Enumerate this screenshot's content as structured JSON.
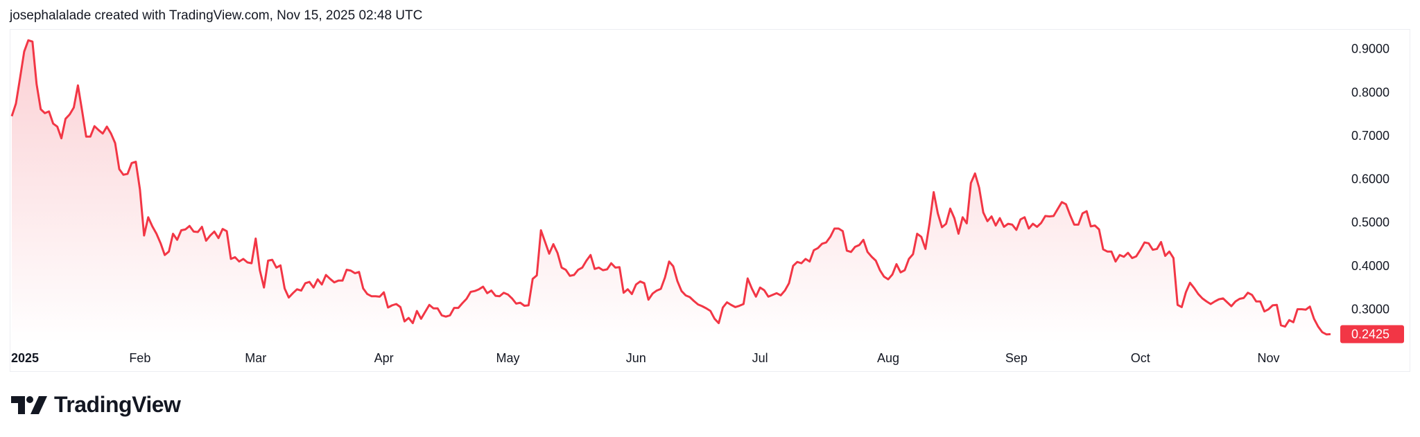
{
  "header": {
    "caption": "josephalalade created with TradingView.com, Nov 15, 2025 02:48 UTC"
  },
  "brand": {
    "name": "TradingView",
    "icon": "tradingview-logo-icon"
  },
  "colors": {
    "line": "#f23645",
    "area_top": "#fbd0d4",
    "area_bottom": "#ffffff",
    "label_bg": "#f23645",
    "label_text": "#ffffff",
    "axis_text": "#131722"
  },
  "chart_data": {
    "type": "area",
    "series": [
      {
        "values": [
          0.745,
          0.774,
          0.833,
          0.894,
          0.92,
          0.917,
          0.819,
          0.761,
          0.752,
          0.756,
          0.728,
          0.721,
          0.694,
          0.739,
          0.749,
          0.765,
          0.816,
          0.758,
          0.698,
          0.698,
          0.722,
          0.713,
          0.705,
          0.721,
          0.705,
          0.683,
          0.623,
          0.61,
          0.612,
          0.637,
          0.64,
          0.576,
          0.47,
          0.512,
          0.491,
          0.474,
          0.452,
          0.425,
          0.433,
          0.474,
          0.46,
          0.482,
          0.484,
          0.492,
          0.479,
          0.478,
          0.49,
          0.458,
          0.47,
          0.479,
          0.464,
          0.485,
          0.48,
          0.416,
          0.42,
          0.41,
          0.416,
          0.408,
          0.406,
          0.463,
          0.39,
          0.35,
          0.412,
          0.414,
          0.396,
          0.401,
          0.348,
          0.327,
          0.337,
          0.346,
          0.343,
          0.36,
          0.363,
          0.35,
          0.369,
          0.357,
          0.379,
          0.37,
          0.362,
          0.366,
          0.366,
          0.391,
          0.389,
          0.383,
          0.386,
          0.348,
          0.335,
          0.33,
          0.33,
          0.329,
          0.339,
          0.304,
          0.309,
          0.312,
          0.305,
          0.272,
          0.28,
          0.268,
          0.296,
          0.278,
          0.294,
          0.31,
          0.302,
          0.302,
          0.286,
          0.283,
          0.286,
          0.303,
          0.303,
          0.314,
          0.324,
          0.34,
          0.342,
          0.346,
          0.352,
          0.337,
          0.343,
          0.331,
          0.33,
          0.338,
          0.334,
          0.325,
          0.313,
          0.315,
          0.308,
          0.309,
          0.37,
          0.378,
          0.482,
          0.455,
          0.428,
          0.45,
          0.43,
          0.396,
          0.391,
          0.377,
          0.379,
          0.391,
          0.396,
          0.412,
          0.425,
          0.393,
          0.396,
          0.39,
          0.392,
          0.406,
          0.396,
          0.397,
          0.338,
          0.346,
          0.335,
          0.357,
          0.364,
          0.36,
          0.322,
          0.336,
          0.343,
          0.347,
          0.373,
          0.41,
          0.399,
          0.365,
          0.342,
          0.332,
          0.328,
          0.319,
          0.311,
          0.307,
          0.302,
          0.296,
          0.278,
          0.268,
          0.304,
          0.316,
          0.31,
          0.305,
          0.308,
          0.312,
          0.371,
          0.348,
          0.329,
          0.35,
          0.344,
          0.329,
          0.333,
          0.337,
          0.332,
          0.343,
          0.36,
          0.4,
          0.409,
          0.406,
          0.416,
          0.41,
          0.436,
          0.441,
          0.451,
          0.454,
          0.467,
          0.486,
          0.486,
          0.48,
          0.435,
          0.432,
          0.444,
          0.448,
          0.46,
          0.432,
          0.421,
          0.412,
          0.39,
          0.375,
          0.369,
          0.38,
          0.404,
          0.385,
          0.39,
          0.416,
          0.427,
          0.474,
          0.467,
          0.439,
          0.498,
          0.57,
          0.521,
          0.489,
          0.497,
          0.532,
          0.51,
          0.474,
          0.512,
          0.498,
          0.591,
          0.613,
          0.58,
          0.523,
          0.503,
          0.514,
          0.493,
          0.51,
          0.49,
          0.497,
          0.495,
          0.483,
          0.507,
          0.512,
          0.486,
          0.497,
          0.49,
          0.499,
          0.515,
          0.514,
          0.515,
          0.531,
          0.547,
          0.542,
          0.517,
          0.495,
          0.495,
          0.521,
          0.526,
          0.491,
          0.493,
          0.484,
          0.438,
          0.433,
          0.433,
          0.41,
          0.425,
          0.421,
          0.43,
          0.418,
          0.422,
          0.437,
          0.454,
          0.452,
          0.437,
          0.439,
          0.455,
          0.423,
          0.433,
          0.418,
          0.31,
          0.305,
          0.339,
          0.361,
          0.349,
          0.335,
          0.325,
          0.318,
          0.312,
          0.318,
          0.323,
          0.325,
          0.316,
          0.307,
          0.318,
          0.324,
          0.326,
          0.338,
          0.333,
          0.318,
          0.318,
          0.295,
          0.3,
          0.309,
          0.31,
          0.263,
          0.26,
          0.275,
          0.27,
          0.3,
          0.3,
          0.299,
          0.306,
          0.278,
          0.26,
          0.247,
          0.242,
          0.2425
        ]
      }
    ],
    "x_ticks": [
      "2025",
      "Feb",
      "Mar",
      "Apr",
      "May",
      "Jun",
      "Jul",
      "Aug",
      "Sep",
      "Oct",
      "Nov"
    ],
    "x_tick_index": [
      0,
      31,
      59,
      90,
      120,
      151,
      181,
      212,
      243,
      273,
      304
    ],
    "y_ticks": [
      "0.9000",
      "0.8000",
      "0.7000",
      "0.6000",
      "0.5000",
      "0.4000",
      "0.3000"
    ],
    "y_tick_values": [
      0.9,
      0.8,
      0.7,
      0.6,
      0.5,
      0.4,
      0.3
    ],
    "last_value_label": "0.2425",
    "last_value": 0.2425,
    "ylim": [
      0.2226,
      0.9442
    ],
    "grid": false,
    "xlabel": "",
    "ylabel": ""
  }
}
